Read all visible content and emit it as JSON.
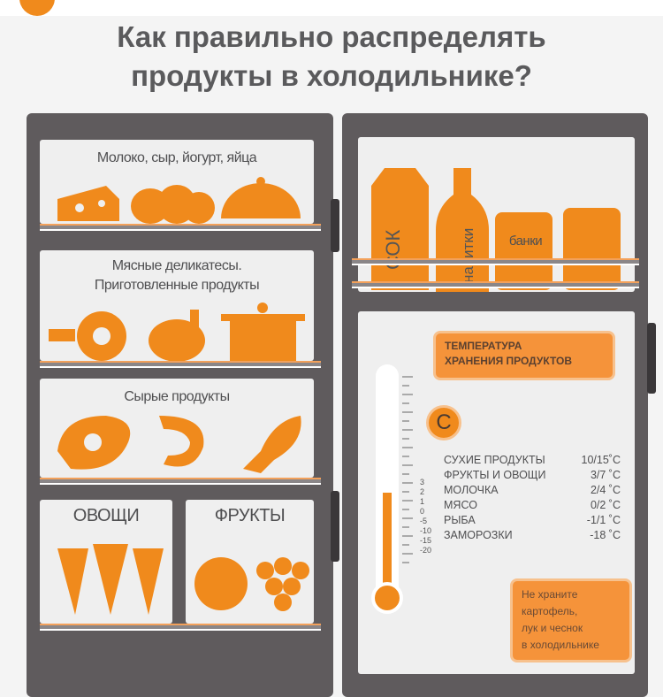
{
  "title_lines": [
    "Как правильно распределять",
    "продукты в холодильнике?"
  ],
  "left_door": {
    "shelf1_label": "Молоко, сыр, йогурт, яйца",
    "shelf2_label_lines": [
      "Мясные деликатесы.",
      "Приготовленные продукты"
    ],
    "shelf3_label": "Сырые продукты",
    "drawer_left_label": "ОВОЩИ",
    "drawer_right_label": "ФРУКТЫ"
  },
  "right_door": {
    "top_labels": {
      "juice": "СОК",
      "drinks": "напитки",
      "cans": "банки"
    },
    "temp_heading_lines": [
      "ТЕМПЕРАТУРА",
      "ХРАНЕНИЯ ПРОДУКТОВ"
    ],
    "celsius_badge": "C",
    "temperatures": [
      {
        "item": "СУХИЕ ПРОДУКТЫ",
        "range": "10/15˚C"
      },
      {
        "item": "ФРУКТЫ И ОВОЩИ",
        "range": "3/7 ˚C"
      },
      {
        "item": "МОЛОЧКА",
        "range": "2/4 ˚C"
      },
      {
        "item": "МЯСО",
        "range": "0/2 ˚C"
      },
      {
        "item": "РЫБА",
        "range": "-1/1 ˚C"
      },
      {
        "item": "ЗАМОРОЗКИ",
        "range": "-18 ˚C"
      }
    ],
    "thermometer_scale": [
      "3",
      "2",
      "1",
      "0",
      "-5",
      "-10",
      "-15",
      "-20"
    ],
    "warning_lines": [
      "Не храните",
      "картофель,",
      "лук и чеснок",
      "в холодильнике"
    ]
  },
  "colors": {
    "accent": "#f08a1c",
    "fridge": "#5f5b5d",
    "panel": "#efefef",
    "text": "#58595b"
  }
}
